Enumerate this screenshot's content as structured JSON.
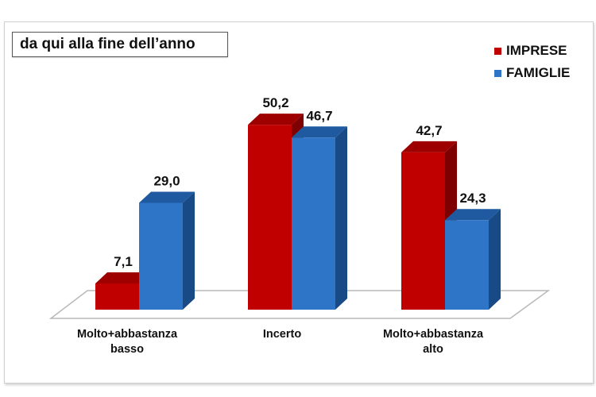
{
  "title": "da qui alla fine dell’anno",
  "legend": [
    {
      "label": "IMPRESE",
      "color": "#C00000"
    },
    {
      "label": "FAMIGLIE",
      "color": "#2E75C8"
    }
  ],
  "categories": [
    {
      "line1": "Molto+abbastanza",
      "line2": "basso"
    },
    {
      "line1": "Incerto",
      "line2": ""
    },
    {
      "line1": "Molto+abbastanza",
      "line2": "alto"
    }
  ],
  "labels": {
    "imprese": [
      "7,1",
      "50,2",
      "42,7"
    ],
    "famiglie": [
      "29,0",
      "46,7",
      "24,3"
    ]
  },
  "colors": {
    "imprese_front": "#C00000",
    "imprese_top": "#9E0000",
    "imprese_side": "#7F0000",
    "famiglie_front": "#2E75C8",
    "famiglie_top": "#1F5AA0",
    "famiglie_side": "#184A85"
  },
  "chart_data": {
    "type": "bar",
    "title": "da qui alla fine dell’anno",
    "categories": [
      "Molto+abbastanza basso",
      "Incerto",
      "Molto+abbastanza alto"
    ],
    "series": [
      {
        "name": "IMPRESE",
        "values": [
          7.1,
          50.2,
          42.7
        ],
        "color": "#C00000"
      },
      {
        "name": "FAMIGLIE",
        "values": [
          29.0,
          46.7,
          24.3
        ],
        "color": "#2E75C8"
      }
    ],
    "xlabel": "",
    "ylabel": "",
    "ylim": [
      0,
      55
    ],
    "grid": false,
    "legend_position": "top-right",
    "style": "3d-clustered-column"
  }
}
